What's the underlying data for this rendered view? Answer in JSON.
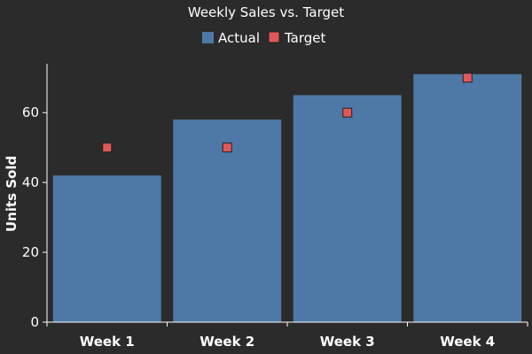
{
  "chart_data": {
    "type": "bar",
    "title": "Weekly Sales vs. Target",
    "xlabel": "",
    "ylabel": "Units Sold",
    "categories": [
      "Week 1",
      "Week 2",
      "Week 3",
      "Week 4"
    ],
    "series": [
      {
        "name": "Actual",
        "type": "bar",
        "values": [
          42,
          58,
          65,
          71
        ],
        "color": "#4e79a7"
      },
      {
        "name": "Target",
        "type": "scatter",
        "marker": "square",
        "values": [
          50,
          50,
          60,
          70
        ],
        "color": "#e15759"
      }
    ],
    "ylim": [
      0,
      74
    ],
    "yticks": [
      0,
      20,
      40,
      60
    ],
    "grid": false,
    "legend_position": "top-center",
    "background": "#2b2b2b",
    "text_color": "#ffffff"
  }
}
